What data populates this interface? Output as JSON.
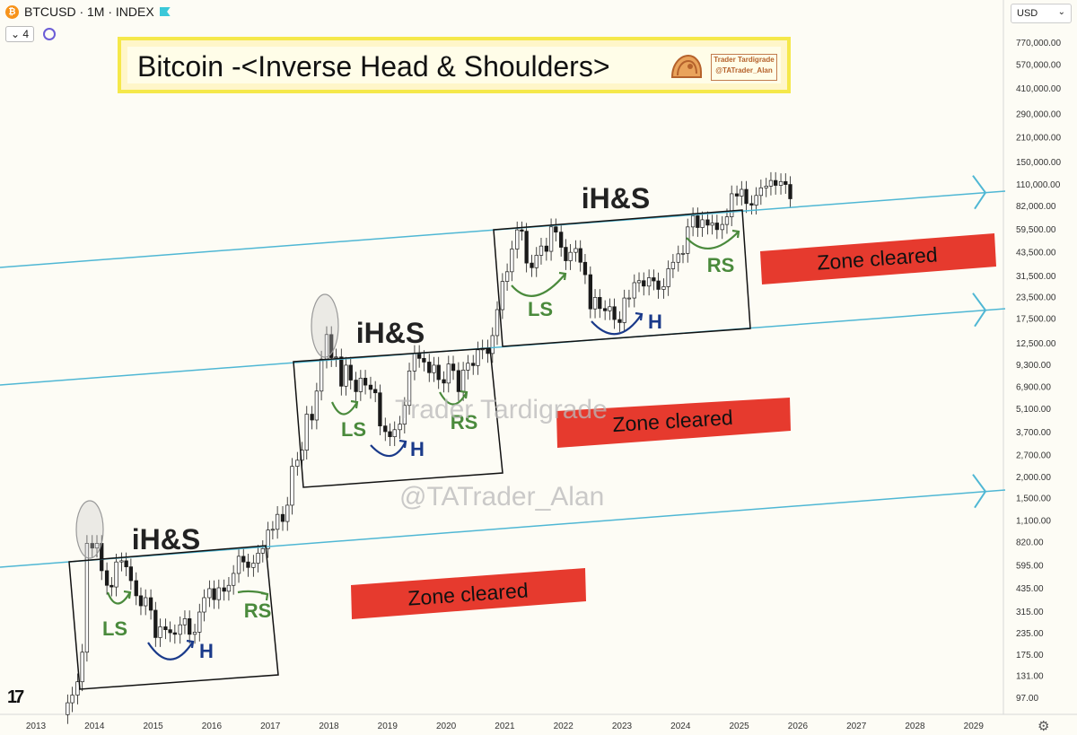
{
  "header": {
    "symbol_icon": "bitcoin-icon",
    "symbol": "BTCUSD · 1M · INDEX",
    "interval_count": "4",
    "currency": "USD"
  },
  "title": {
    "text": "Bitcoin -<Inverse Head & Shoulders>",
    "credit_line1": "Trader Tardigrade",
    "credit_line2": "@TATrader_Alan"
  },
  "watermarks": [
    "Trader Tardigrade",
    "@TATrader_Alan"
  ],
  "colors": {
    "background": "#fdfcf5",
    "candle_up": "#ffffff",
    "candle_down": "#1a1a1a",
    "channel_line": "#4fb7d4",
    "zone": "#e63a2e",
    "label_green": "#4a8a3c",
    "label_blue": "#1a3a8a"
  },
  "chart_data": {
    "type": "candlestick",
    "series_name": "BTCUSD",
    "x_axis": {
      "ticks": [
        "2013",
        "2014",
        "2015",
        "2016",
        "2017",
        "2018",
        "2019",
        "2020",
        "2021",
        "2022",
        "2023",
        "2024",
        "2025",
        "2026",
        "2027",
        "2028",
        "2029"
      ],
      "range": [
        2013,
        2029.6
      ]
    },
    "y_axis": {
      "scale": "log",
      "ticks": [
        "97.00",
        "131.00",
        "175.00",
        "235.00",
        "315.00",
        "435.00",
        "595.00",
        "820.00",
        "1,100.00",
        "1,500.00",
        "2,000.00",
        "2,700.00",
        "3,700.00",
        "5,100.00",
        "6,900.00",
        "9,300.00",
        "12,500.00",
        "17,500.00",
        "23,500.00",
        "31,500.00",
        "43,500.00",
        "59,500.00",
        "82,000.00",
        "110,000.00",
        "150,000.00",
        "210,000.00",
        "290,000.00",
        "410,000.00",
        "570,000.00",
        "770,000.00"
      ]
    },
    "monthly_close": [
      [
        2013.5,
        90
      ],
      [
        2013.58,
        100
      ],
      [
        2013.67,
        120
      ],
      [
        2013.75,
        180
      ],
      [
        2013.83,
        800
      ],
      [
        2013.92,
        750
      ],
      [
        2014.0,
        800
      ],
      [
        2014.08,
        550
      ],
      [
        2014.17,
        450
      ],
      [
        2014.25,
        440
      ],
      [
        2014.33,
        620
      ],
      [
        2014.42,
        630
      ],
      [
        2014.5,
        580
      ],
      [
        2014.58,
        480
      ],
      [
        2014.67,
        390
      ],
      [
        2014.75,
        340
      ],
      [
        2014.83,
        380
      ],
      [
        2014.92,
        320
      ],
      [
        2015.0,
        220
      ],
      [
        2015.08,
        255
      ],
      [
        2015.17,
        245
      ],
      [
        2015.25,
        235
      ],
      [
        2015.33,
        230
      ],
      [
        2015.42,
        262
      ],
      [
        2015.5,
        285
      ],
      [
        2015.58,
        230
      ],
      [
        2015.67,
        237
      ],
      [
        2015.75,
        312
      ],
      [
        2015.83,
        380
      ],
      [
        2015.92,
        430
      ],
      [
        2016.0,
        370
      ],
      [
        2016.08,
        435
      ],
      [
        2016.17,
        415
      ],
      [
        2016.25,
        450
      ],
      [
        2016.33,
        530
      ],
      [
        2016.42,
        670
      ],
      [
        2016.5,
        620
      ],
      [
        2016.58,
        575
      ],
      [
        2016.67,
        610
      ],
      [
        2016.75,
        700
      ],
      [
        2016.83,
        745
      ],
      [
        2016.92,
        960
      ],
      [
        2017.0,
        970
      ],
      [
        2017.08,
        1190
      ],
      [
        2017.17,
        1080
      ],
      [
        2017.25,
        1350
      ],
      [
        2017.33,
        2300
      ],
      [
        2017.42,
        2500
      ],
      [
        2017.5,
        2870
      ],
      [
        2017.58,
        4700
      ],
      [
        2017.67,
        4340
      ],
      [
        2017.75,
        6450
      ],
      [
        2017.83,
        10000
      ],
      [
        2017.92,
        14000
      ],
      [
        2018.0,
        10200
      ],
      [
        2018.08,
        10300
      ],
      [
        2018.17,
        6900
      ],
      [
        2018.25,
        9200
      ],
      [
        2018.33,
        7500
      ],
      [
        2018.42,
        6400
      ],
      [
        2018.5,
        7700
      ],
      [
        2018.58,
        7000
      ],
      [
        2018.67,
        6600
      ],
      [
        2018.75,
        6300
      ],
      [
        2018.83,
        4000
      ],
      [
        2018.92,
        3700
      ],
      [
        2019.0,
        3450
      ],
      [
        2019.08,
        3800
      ],
      [
        2019.17,
        4100
      ],
      [
        2019.25,
        5300
      ],
      [
        2019.33,
        8500
      ],
      [
        2019.42,
        10800
      ],
      [
        2019.5,
        10100
      ],
      [
        2019.58,
        9600
      ],
      [
        2019.67,
        8300
      ],
      [
        2019.75,
        9200
      ],
      [
        2019.83,
        7550
      ],
      [
        2019.92,
        7200
      ],
      [
        2020.0,
        9350
      ],
      [
        2020.08,
        8550
      ],
      [
        2020.17,
        6400
      ],
      [
        2020.25,
        8600
      ],
      [
        2020.33,
        9450
      ],
      [
        2020.42,
        9150
      ],
      [
        2020.5,
        11350
      ],
      [
        2020.58,
        11650
      ],
      [
        2020.67,
        10800
      ],
      [
        2020.75,
        13800
      ],
      [
        2020.83,
        19700
      ],
      [
        2020.92,
        29000
      ],
      [
        2021.0,
        33100
      ],
      [
        2021.08,
        45200
      ],
      [
        2021.17,
        58800
      ],
      [
        2021.25,
        57700
      ],
      [
        2021.33,
        37300
      ],
      [
        2021.42,
        35000
      ],
      [
        2021.5,
        41500
      ],
      [
        2021.58,
        47100
      ],
      [
        2021.67,
        43800
      ],
      [
        2021.75,
        61300
      ],
      [
        2021.83,
        57000
      ],
      [
        2021.92,
        46300
      ],
      [
        2022.0,
        38500
      ],
      [
        2022.08,
        43200
      ],
      [
        2022.17,
        45500
      ],
      [
        2022.25,
        37700
      ],
      [
        2022.33,
        31800
      ],
      [
        2022.42,
        19900
      ],
      [
        2022.5,
        23300
      ],
      [
        2022.58,
        20000
      ],
      [
        2022.67,
        19400
      ],
      [
        2022.75,
        20500
      ],
      [
        2022.83,
        17200
      ],
      [
        2022.92,
        16500
      ],
      [
        2023.0,
        23100
      ],
      [
        2023.08,
        23100
      ],
      [
        2023.17,
        28500
      ],
      [
        2023.25,
        29300
      ],
      [
        2023.33,
        27200
      ],
      [
        2023.42,
        30500
      ],
      [
        2023.5,
        29200
      ],
      [
        2023.58,
        26000
      ],
      [
        2023.67,
        27000
      ],
      [
        2023.75,
        34500
      ],
      [
        2023.83,
        37700
      ],
      [
        2023.92,
        42300
      ],
      [
        2024.0,
        42600
      ],
      [
        2024.08,
        61200
      ],
      [
        2024.17,
        71300
      ],
      [
        2024.25,
        60700
      ],
      [
        2024.33,
        67500
      ],
      [
        2024.42,
        62700
      ],
      [
        2024.5,
        64600
      ],
      [
        2024.58,
        59000
      ],
      [
        2024.67,
        63300
      ],
      [
        2024.75,
        70300
      ],
      [
        2024.83,
        96400
      ],
      [
        2024.92,
        93400
      ],
      [
        2025.0,
        102400
      ],
      [
        2025.08,
        84300
      ],
      [
        2025.17,
        82500
      ],
      [
        2025.25,
        94200
      ],
      [
        2025.33,
        104600
      ],
      [
        2025.42,
        107100
      ],
      [
        2025.5,
        115700
      ],
      [
        2025.58,
        108200
      ],
      [
        2025.67,
        114000
      ],
      [
        2025.75,
        109500
      ],
      [
        2025.83,
        90000
      ]
    ],
    "patterns": [
      {
        "label": "iH&S",
        "shoulder_left": "LS",
        "head": "H",
        "shoulder_right": "RS"
      },
      {
        "label": "iH&S",
        "shoulder_left": "LS",
        "head": "H",
        "shoulder_right": "RS"
      },
      {
        "label": "iH&S",
        "shoulder_left": "LS",
        "head": "H",
        "shoulder_right": "RS"
      }
    ],
    "zones": [
      "Zone cleared",
      "Zone cleared",
      "Zone cleared"
    ]
  }
}
